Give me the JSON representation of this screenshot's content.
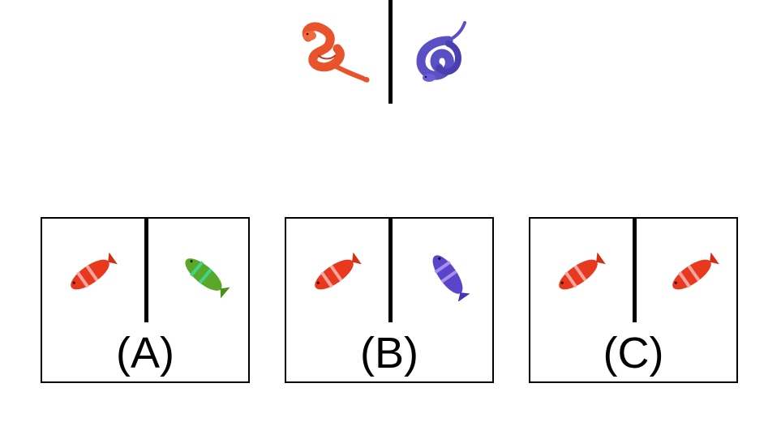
{
  "prompt": {
    "left_item": {
      "icon": "snake-icon",
      "color": "#e8532c"
    },
    "right_item": {
      "icon": "snake-icon",
      "color": "#5a4fc4"
    }
  },
  "options": [
    {
      "label": "(A)",
      "left_icon": "fish-icon",
      "left_color": "#e8391f",
      "right_icon": "fish-icon",
      "right_color": "#5aa82a"
    },
    {
      "label": "(B)",
      "left_icon": "fish-icon",
      "left_color": "#e8391f",
      "right_icon": "fish-icon",
      "right_color": "#5a45c8"
    },
    {
      "label": "(C)",
      "left_icon": "fish-icon",
      "left_color": "#e8391f",
      "right_icon": "fish-icon",
      "right_color": "#e8391f"
    }
  ]
}
